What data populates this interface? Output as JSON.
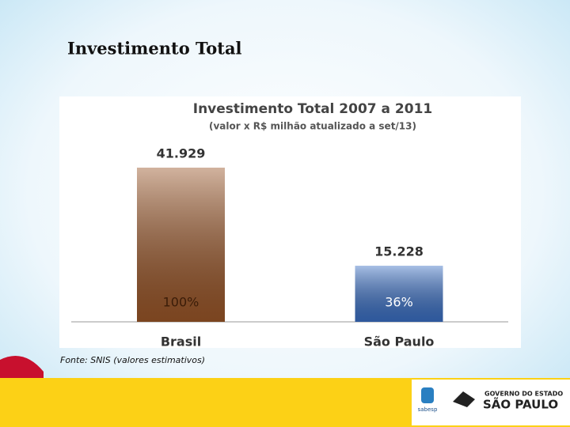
{
  "slide": {
    "title": "Investimento Total",
    "source": "Fonte: SNIS (valores estimativos)",
    "logo_company": "sabesp",
    "logo_gov_line1": "GOVERNO DO ESTADO",
    "logo_gov_line2": "SÃO PAULO"
  },
  "chart_data": {
    "type": "bar",
    "title": "Investimento Total 2007 a 2011",
    "subtitle": "(valor x R$ milhão atualizado a set/13)",
    "categories": [
      "Brasil",
      "São Paulo"
    ],
    "values": [
      41929,
      15228
    ],
    "value_labels": [
      "41.929",
      "15.228"
    ],
    "shares": [
      100,
      36
    ],
    "share_labels": [
      "100%",
      "36%"
    ],
    "colors": [
      "#9a5628",
      "#3a6fc4"
    ]
  }
}
